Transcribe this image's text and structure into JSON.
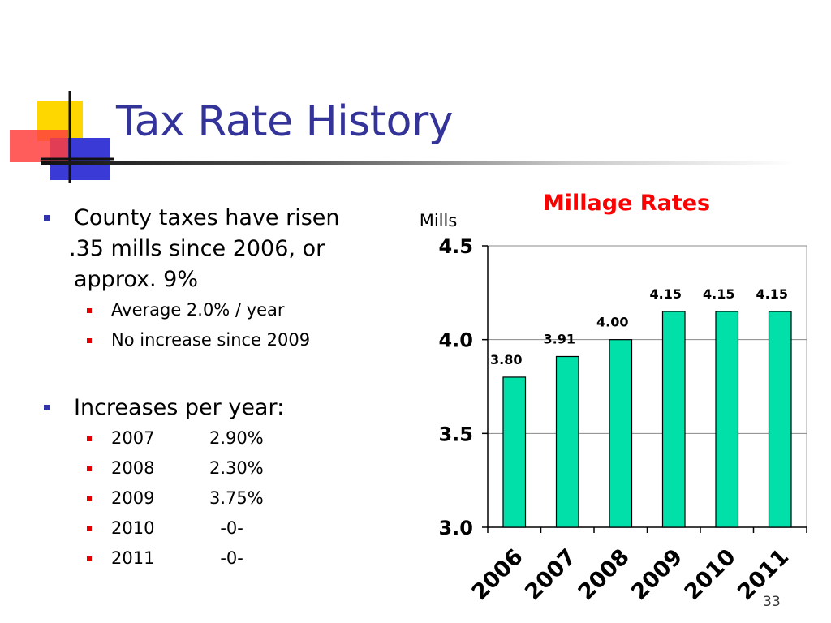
{
  "slide": {
    "title": "Tax Rate History",
    "page_number": "33"
  },
  "bullets": {
    "point1": {
      "line1": "County taxes have risen",
      "line2": ".35 mills since 2006, or",
      "line3": "approx. 9%",
      "sub": [
        "Average 2.0% / year",
        "No increase since 2009"
      ]
    },
    "point2": {
      "text": "Increases per year:",
      "rows": [
        {
          "year": "2007",
          "value": "2.90%"
        },
        {
          "year": "2008",
          "value": "2.30%"
        },
        {
          "year": "2009",
          "value": "3.75%"
        },
        {
          "year": "2010",
          "value": "  -0-"
        },
        {
          "year": "2011",
          "value": "  -0-"
        }
      ]
    }
  },
  "colors": {
    "title": "#333399",
    "chart_title": "#ff0000",
    "bar_fill": "#00e0a8",
    "bar_stroke": "#000000"
  },
  "chart_data": {
    "type": "bar",
    "title": "Millage Rates",
    "ylabel": "Mills",
    "xlabel": "",
    "categories": [
      "2006",
      "2007",
      "2008",
      "2009",
      "2010",
      "2011"
    ],
    "values": [
      3.8,
      3.91,
      4.0,
      4.15,
      4.15,
      4.15
    ],
    "data_labels": [
      "3.80",
      "3.91",
      "4.00",
      "4.15",
      "4.15",
      "4.15"
    ],
    "ylim": [
      3.0,
      4.5
    ],
    "yticks": [
      "3.0",
      "3.5",
      "4.0",
      "4.5"
    ],
    "grid": true,
    "legend": "none"
  }
}
